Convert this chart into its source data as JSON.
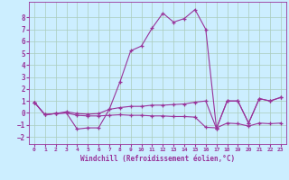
{
  "xlabel": "Windchill (Refroidissement éolien,°C)",
  "background_color": "#cceeff",
  "grid_color": "#aaccbb",
  "line_color": "#993399",
  "xlim": [
    -0.5,
    23.5
  ],
  "ylim": [
    -2.6,
    9.3
  ],
  "xticks": [
    0,
    1,
    2,
    3,
    4,
    5,
    6,
    7,
    8,
    9,
    10,
    11,
    12,
    13,
    14,
    15,
    16,
    17,
    18,
    19,
    20,
    21,
    22,
    23
  ],
  "yticks": [
    -2,
    -1,
    0,
    1,
    2,
    3,
    4,
    5,
    6,
    7,
    8
  ],
  "series1_x": [
    0,
    1,
    2,
    3,
    4,
    5,
    6,
    7,
    8,
    9,
    10,
    11,
    12,
    13,
    14,
    15,
    16,
    17,
    18,
    19,
    20,
    21,
    22,
    23
  ],
  "series1_y": [
    0.9,
    -0.15,
    -0.05,
    0.0,
    -1.35,
    -1.25,
    -1.25,
    0.3,
    2.6,
    5.2,
    5.6,
    7.1,
    8.35,
    7.6,
    7.9,
    8.65,
    7.0,
    -1.3,
    1.0,
    1.0,
    -0.85,
    1.2,
    1.0,
    1.3
  ],
  "series2_x": [
    0,
    1,
    2,
    3,
    4,
    5,
    6,
    7,
    8,
    9,
    10,
    11,
    12,
    13,
    14,
    15,
    16,
    17,
    18,
    19,
    20,
    21,
    22,
    23
  ],
  "series2_y": [
    0.9,
    -0.15,
    -0.05,
    0.1,
    -0.05,
    -0.1,
    -0.05,
    0.3,
    0.45,
    0.55,
    0.55,
    0.65,
    0.65,
    0.7,
    0.75,
    0.9,
    1.0,
    -1.3,
    1.0,
    1.0,
    -0.85,
    1.2,
    1.0,
    1.3
  ],
  "series3_x": [
    0,
    1,
    2,
    3,
    4,
    5,
    6,
    7,
    8,
    9,
    10,
    11,
    12,
    13,
    14,
    15,
    16,
    17,
    18,
    19,
    20,
    21,
    22,
    23
  ],
  "series3_y": [
    0.9,
    -0.15,
    -0.05,
    0.0,
    -0.2,
    -0.25,
    -0.25,
    -0.2,
    -0.15,
    -0.2,
    -0.2,
    -0.25,
    -0.25,
    -0.3,
    -0.3,
    -0.35,
    -1.2,
    -1.25,
    -0.85,
    -0.9,
    -1.1,
    -0.85,
    -0.9,
    -0.85
  ]
}
